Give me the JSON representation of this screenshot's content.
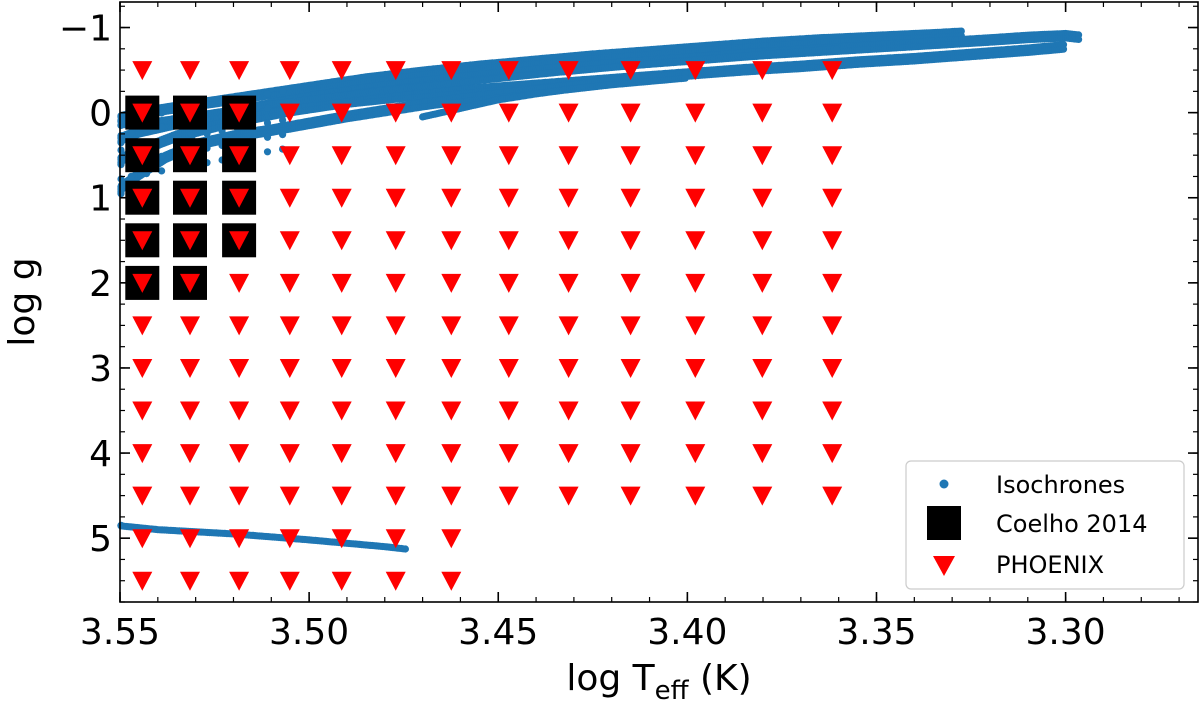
{
  "chart_data": {
    "type": "scatter",
    "xlabel_main": "log T",
    "xlabel_sub": "eff",
    "xlabel_unit": " (K)",
    "ylabel": "log g",
    "xlim": [
      3.55,
      3.265
    ],
    "ylim": [
      5.75,
      -1.3
    ],
    "x_reversed": true,
    "y_reversed": true,
    "xticks": [
      3.55,
      3.5,
      3.45,
      3.4,
      3.35,
      3.3
    ],
    "xtick_labels": [
      "3.55",
      "3.50",
      "3.45",
      "3.40",
      "3.35",
      "3.30"
    ],
    "yticks": [
      -1,
      0,
      1,
      2,
      3,
      4,
      5
    ],
    "ytick_labels": [
      "−1",
      "0",
      "1",
      "2",
      "3",
      "4",
      "5"
    ],
    "legend_position": "lower-right",
    "series": [
      {
        "name": "Isochrones",
        "marker": "circle",
        "color": "#1f77b4",
        "curves": [
          [
            [
              3.551,
              0.05
            ],
            [
              3.545,
              -0.02
            ],
            [
              3.53,
              -0.12
            ],
            [
              3.515,
              -0.22
            ],
            [
              3.5,
              -0.32
            ],
            [
              3.485,
              -0.42
            ],
            [
              3.47,
              -0.5
            ],
            [
              3.455,
              -0.57
            ],
            [
              3.44,
              -0.63
            ],
            [
              3.425,
              -0.69
            ],
            [
              3.41,
              -0.74
            ],
            [
              3.395,
              -0.79
            ],
            [
              3.38,
              -0.84
            ],
            [
              3.365,
              -0.88
            ],
            [
              3.35,
              -0.91
            ],
            [
              3.335,
              -0.94
            ],
            [
              3.327,
              -0.96
            ]
          ],
          [
            [
              3.551,
              0.3
            ],
            [
              3.545,
              0.2
            ],
            [
              3.53,
              0.05
            ],
            [
              3.515,
              -0.08
            ],
            [
              3.5,
              -0.2
            ],
            [
              3.485,
              -0.3
            ],
            [
              3.47,
              -0.38
            ],
            [
              3.455,
              -0.45
            ],
            [
              3.44,
              -0.51
            ],
            [
              3.425,
              -0.57
            ],
            [
              3.41,
              -0.62
            ],
            [
              3.395,
              -0.67
            ],
            [
              3.38,
              -0.72
            ],
            [
              3.365,
              -0.76
            ],
            [
              3.35,
              -0.8
            ],
            [
              3.335,
              -0.84
            ],
            [
              3.32,
              -0.88
            ],
            [
              3.31,
              -0.91
            ],
            [
              3.3,
              -0.93
            ],
            [
              3.296,
              -0.91
            ]
          ],
          [
            [
              3.551,
              0.55
            ],
            [
              3.545,
              0.42
            ],
            [
              3.535,
              0.25
            ],
            [
              3.52,
              0.08
            ],
            [
              3.505,
              -0.05
            ],
            [
              3.49,
              -0.15
            ],
            [
              3.475,
              -0.22
            ],
            [
              3.46,
              -0.28
            ],
            [
              3.445,
              -0.33
            ],
            [
              3.43,
              -0.38
            ],
            [
              3.415,
              -0.43
            ],
            [
              3.4,
              -0.48
            ],
            [
              3.385,
              -0.53
            ],
            [
              3.37,
              -0.57
            ],
            [
              3.355,
              -0.62
            ],
            [
              3.34,
              -0.66
            ],
            [
              3.325,
              -0.71
            ],
            [
              3.31,
              -0.76
            ],
            [
              3.3,
              -0.8
            ]
          ],
          [
            [
              3.551,
              0.9
            ],
            [
              3.545,
              0.7
            ],
            [
              3.538,
              0.5
            ],
            [
              3.53,
              0.35
            ],
            [
              3.52,
              0.25
            ],
            [
              3.51,
              0.18
            ],
            [
              3.5,
              0.1
            ],
            [
              3.49,
              0.02
            ],
            [
              3.48,
              -0.05
            ],
            [
              3.47,
              -0.12
            ],
            [
              3.46,
              -0.18
            ],
            [
              3.45,
              -0.23
            ],
            [
              3.44,
              -0.28
            ],
            [
              3.43,
              -0.33
            ],
            [
              3.42,
              -0.38
            ],
            [
              3.41,
              -0.42
            ],
            [
              3.4,
              -0.46
            ]
          ],
          [
            [
              3.551,
              0.15
            ],
            [
              3.54,
              0.1
            ],
            [
              3.525,
              0.0
            ],
            [
              3.51,
              -0.1
            ],
            [
              3.495,
              -0.18
            ],
            [
              3.48,
              -0.26
            ],
            [
              3.465,
              -0.33
            ],
            [
              3.45,
              -0.4
            ],
            [
              3.435,
              -0.47
            ],
            [
              3.42,
              -0.53
            ],
            [
              3.405,
              -0.59
            ],
            [
              3.39,
              -0.65
            ],
            [
              3.375,
              -0.7
            ],
            [
              3.36,
              -0.75
            ]
          ],
          [
            [
              3.47,
              0.05
            ],
            [
              3.46,
              -0.05
            ],
            [
              3.45,
              -0.15
            ],
            [
              3.44,
              -0.22
            ],
            [
              3.43,
              -0.28
            ],
            [
              3.42,
              -0.33
            ]
          ],
          [
            [
              3.551,
              4.85
            ],
            [
              3.54,
              4.9
            ],
            [
              3.52,
              4.95
            ],
            [
              3.5,
              5.02
            ],
            [
              3.49,
              5.06
            ],
            [
              3.48,
              5.1
            ],
            [
              3.474,
              5.13
            ]
          ]
        ]
      },
      {
        "name": "Coelho 2014",
        "marker": "square",
        "color": "#000000",
        "points": [
          [
            3.5441,
            0.0
          ],
          [
            3.5315,
            0.0
          ],
          [
            3.5185,
            0.0
          ],
          [
            3.5441,
            0.5
          ],
          [
            3.5315,
            0.5
          ],
          [
            3.5185,
            0.5
          ],
          [
            3.5441,
            1.0
          ],
          [
            3.5315,
            1.0
          ],
          [
            3.5185,
            1.0
          ],
          [
            3.5441,
            1.5
          ],
          [
            3.5315,
            1.5
          ],
          [
            3.5185,
            1.5
          ],
          [
            3.5441,
            2.0
          ],
          [
            3.5315,
            2.0
          ]
        ]
      },
      {
        "name": "PHOENIX",
        "marker": "triangle-down",
        "color": "#ff0000",
        "teff_grid": [
          3.5441,
          3.5315,
          3.5185,
          3.5051,
          3.4914,
          3.4771,
          3.4624,
          3.4472,
          3.4314,
          3.415,
          3.3979,
          3.3802,
          3.3617
        ],
        "logg_grid": [
          -0.5,
          0.0,
          0.5,
          1.0,
          1.5,
          2.0,
          2.5,
          3.0,
          3.5,
          4.0,
          4.5,
          5.0,
          5.5
        ],
        "short_rows": [
          {
            "logg": 5.0,
            "teff_count": 7
          },
          {
            "logg": 5.5,
            "teff_count": 7
          }
        ]
      }
    ]
  }
}
